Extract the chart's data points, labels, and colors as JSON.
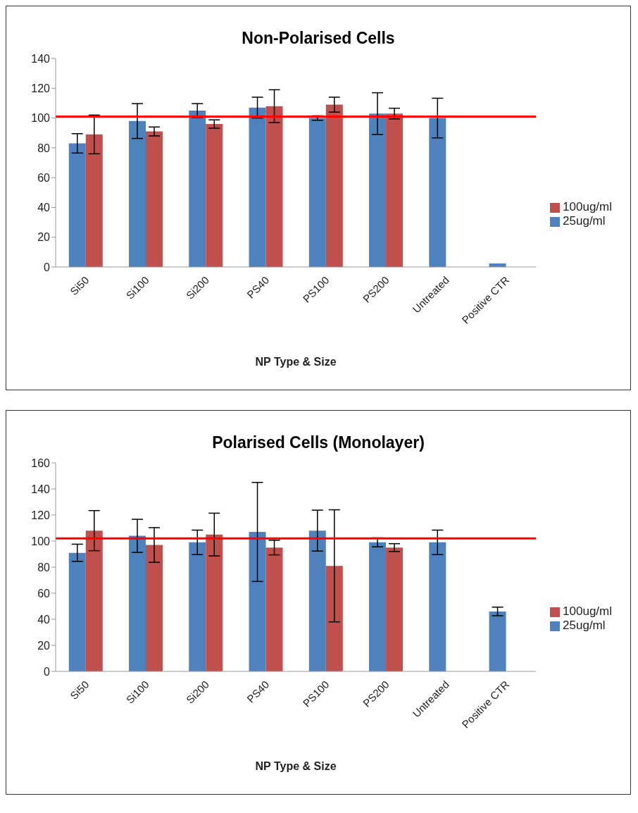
{
  "chart_data": [
    {
      "type": "bar",
      "title": "Non-Polarised Cells",
      "xlabel": "NP Type & Size",
      "categories": [
        "Si50",
        "Si100",
        "Si200",
        "PS40",
        "PS100",
        "PS200",
        "Untreated",
        "Positive CTR"
      ],
      "ylim": [
        0,
        140
      ],
      "yticks": [
        0,
        20,
        40,
        60,
        80,
        100,
        120,
        140
      ],
      "legend": "right",
      "ref_lines": [
        {
          "axis": "y",
          "value": 101,
          "color": "#ff0000"
        }
      ],
      "series": [
        {
          "name": "25ug/ml",
          "color": "#4f81bd",
          "values": [
            83,
            98,
            105,
            107,
            100,
            103,
            100,
            2.4
          ],
          "errors": [
            6.5,
            11.7,
            4.7,
            7,
            1.5,
            14,
            13.3,
            null
          ]
        },
        {
          "name": "100ug/ml",
          "color": "#c0504d",
          "values": [
            89,
            91,
            96,
            108,
            109,
            103,
            null,
            null
          ],
          "errors": [
            13,
            3,
            2.8,
            11,
            5,
            3.6,
            null,
            null
          ]
        }
      ]
    },
    {
      "type": "bar",
      "title": "Polarised Cells (Monolayer)",
      "xlabel": "NP Type & Size",
      "categories": [
        "Si50",
        "Si100",
        "Si200",
        "PS40",
        "PS100",
        "PS200",
        "Untreated",
        "Positive CTR"
      ],
      "ylim": [
        0,
        160
      ],
      "yticks": [
        0,
        20,
        40,
        60,
        80,
        100,
        120,
        140,
        160
      ],
      "legend": "right",
      "ref_lines": [
        {
          "axis": "y",
          "value": 102,
          "color": "#ff0000"
        }
      ],
      "series": [
        {
          "name": "25ug/ml",
          "color": "#4f81bd",
          "values": [
            91,
            104,
            99,
            107,
            108,
            99,
            99,
            46
          ],
          "errors": [
            6.6,
            12.7,
            9.4,
            38,
            15.7,
            3.4,
            9.4,
            3.3
          ]
        },
        {
          "name": "100ug/ml",
          "color": "#c0504d",
          "values": [
            108,
            97,
            105,
            95,
            81,
            95,
            null,
            null
          ],
          "errors": [
            15.4,
            13.3,
            16.4,
            5.6,
            43,
            3,
            null,
            null
          ]
        }
      ]
    }
  ]
}
